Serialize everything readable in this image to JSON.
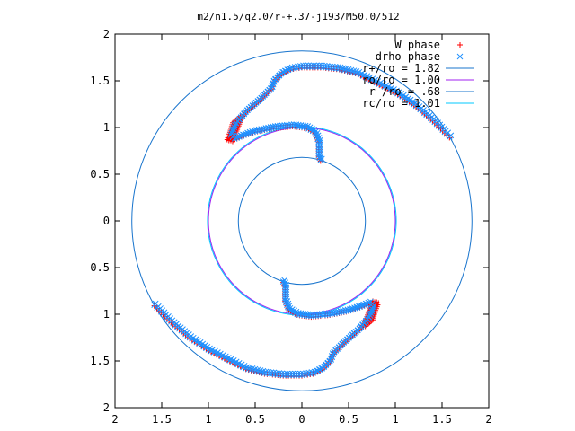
{
  "chart_data": {
    "type": "scatter",
    "title": "m2/n1.5/q2.0/r-+.37-j193/M50.0/512",
    "xlim": [
      -2,
      2
    ],
    "ylim": [
      -2,
      2
    ],
    "x_tick_labels": [
      "2",
      "1.5",
      "1",
      "0.5",
      "0",
      "0.5",
      "1",
      "1.5",
      "2"
    ],
    "y_tick_labels": [
      "2",
      "1.5",
      "1",
      "0.5",
      "0",
      "0.5",
      "1",
      "1.5",
      "2"
    ],
    "grid": false,
    "legend_position": "top-right",
    "series": [
      {
        "name": "W phase",
        "marker": "plus",
        "color": "#ff0000",
        "kind": "points"
      },
      {
        "name": "drho phase",
        "marker": "cross",
        "color": "#1e90ff",
        "kind": "points"
      },
      {
        "name": "r+/ro = 1.82",
        "color": "#1874cd",
        "kind": "circle",
        "radius": 1.82
      },
      {
        "name": "ro/ro = 1.00",
        "color": "#a020f0",
        "kind": "circle",
        "radius": 1.0
      },
      {
        "name": "r-/ro = .68",
        "color": "#1874cd",
        "kind": "circle",
        "radius": 0.68
      },
      {
        "name": "rc/ro = 1.01",
        "color": "#00c8ff",
        "kind": "circle",
        "radius": 1.01
      }
    ],
    "spiral_arm": {
      "points": [
        [
          -0.33,
          1.42
        ],
        [
          -0.3,
          1.5
        ],
        [
          -0.22,
          1.58
        ],
        [
          -0.12,
          1.63
        ],
        [
          0.0,
          1.65
        ],
        [
          0.2,
          1.65
        ],
        [
          0.4,
          1.63
        ],
        [
          0.6,
          1.58
        ],
        [
          0.8,
          1.48
        ],
        [
          1.0,
          1.38
        ],
        [
          1.2,
          1.25
        ],
        [
          1.4,
          1.08
        ],
        [
          1.55,
          0.93
        ],
        [
          1.58,
          0.9
        ]
      ],
      "inner_points": [
        [
          -0.33,
          1.42
        ],
        [
          -0.45,
          1.3
        ],
        [
          -0.6,
          1.17
        ],
        [
          -0.72,
          1.03
        ],
        [
          -0.76,
          0.92
        ],
        [
          -0.72,
          0.88
        ],
        [
          -0.62,
          0.92
        ],
        [
          -0.5,
          0.96
        ],
        [
          -0.3,
          1.0
        ],
        [
          -0.1,
          1.02
        ],
        [
          0.05,
          1.0
        ],
        [
          0.14,
          0.95
        ],
        [
          0.18,
          0.85
        ],
        [
          0.18,
          0.7
        ],
        [
          0.2,
          0.65
        ]
      ],
      "red_extra": [
        [
          -0.8,
          0.87
        ],
        [
          -0.77,
          0.95
        ],
        [
          -0.74,
          1.05
        ],
        [
          -0.66,
          1.12
        ],
        [
          -0.76,
          0.86
        ]
      ]
    }
  }
}
